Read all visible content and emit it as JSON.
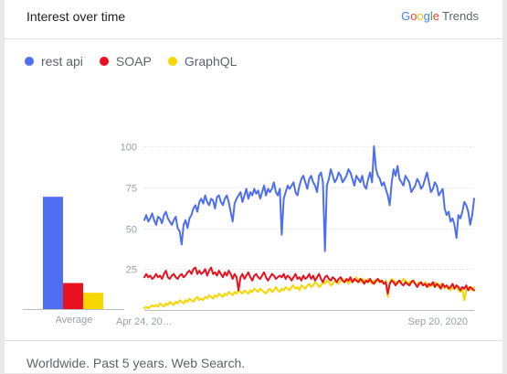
{
  "header": {
    "title": "Interest over time",
    "brand_letters": [
      "G",
      "o",
      "o",
      "g",
      "l",
      "e"
    ],
    "brand_suffix": "Trends"
  },
  "legend": [
    {
      "name": "rest api",
      "color": "#4e6ef2"
    },
    {
      "name": "SOAP",
      "color": "#e8111f"
    },
    {
      "name": "GraphQL",
      "color": "#f7d600"
    }
  ],
  "footer": {
    "text": "Worldwide. Past 5 years. Web Search."
  },
  "chart_data": [
    {
      "type": "bar",
      "categories": [
        "rest api",
        "SOAP",
        "GraphQL"
      ],
      "values": [
        69,
        16,
        10
      ],
      "colors": [
        "#4e6ef2",
        "#e8111f",
        "#f7d600"
      ],
      "xlabel": "Average",
      "ylim": [
        0,
        100
      ]
    },
    {
      "type": "line",
      "x_tick_labels": [
        "Apr 24, 20…",
        "Sep 20, 2020"
      ],
      "y_ticks": [
        25,
        50,
        75,
        100
      ],
      "ylim": [
        0,
        100
      ],
      "grid": true,
      "series": [
        {
          "name": "rest api",
          "color": "#4e6ef2",
          "values": [
            55,
            58,
            54,
            56,
            59,
            55,
            52,
            57,
            56,
            53,
            58,
            60,
            56,
            54,
            52,
            55,
            57,
            50,
            48,
            40,
            52,
            55,
            50,
            56,
            58,
            62,
            64,
            60,
            66,
            68,
            65,
            70,
            66,
            64,
            68,
            67,
            62,
            69,
            70,
            66,
            64,
            68,
            70,
            66,
            60,
            54,
            65,
            68,
            70,
            72,
            66,
            70,
            74,
            68,
            72,
            70,
            74,
            71,
            73,
            68,
            72,
            76,
            70,
            74,
            72,
            74,
            78,
            72,
            70,
            74,
            46,
            68,
            72,
            76,
            74,
            76,
            78,
            72,
            70,
            76,
            80,
            82,
            78,
            74,
            80,
            82,
            78,
            76,
            72,
            82,
            84,
            78,
            36,
            76,
            80,
            86,
            82,
            78,
            80,
            84,
            82,
            78,
            80,
            82,
            86,
            84,
            80,
            76,
            82,
            80,
            78,
            82,
            76,
            74,
            80,
            84,
            78,
            100,
            86,
            82,
            80,
            76,
            78,
            74,
            70,
            64,
            78,
            86,
            82,
            88,
            80,
            78,
            76,
            82,
            80,
            78,
            72,
            74,
            76,
            80,
            78,
            74,
            76,
            80,
            84,
            78,
            72,
            74,
            78,
            76,
            70,
            72,
            74,
            62,
            58,
            60,
            54,
            56,
            52,
            44,
            58,
            56,
            60,
            66,
            64,
            60,
            52,
            58,
            68
          ],
          "smooth": false
        },
        {
          "name": "SOAP",
          "color": "#e8111f",
          "values": [
            20,
            22,
            20,
            21,
            19,
            20,
            22,
            20,
            21,
            19,
            22,
            24,
            20,
            19,
            21,
            22,
            20,
            19,
            21,
            22,
            20,
            21,
            23,
            24,
            22,
            25,
            26,
            22,
            24,
            22,
            23,
            25,
            21,
            24,
            26,
            22,
            23,
            21,
            24,
            22,
            20,
            23,
            21,
            24,
            22,
            19,
            22,
            20,
            12,
            20,
            22,
            19,
            21,
            23,
            20,
            18,
            21,
            22,
            20,
            19,
            21,
            23,
            20,
            18,
            20,
            22,
            21,
            19,
            20,
            21,
            20,
            22,
            19,
            21,
            20,
            18,
            20,
            22,
            19,
            20,
            18,
            21,
            19,
            20,
            22,
            19,
            21,
            18,
            20,
            22,
            19,
            17,
            20,
            21,
            19,
            18,
            20,
            19,
            17,
            19,
            20,
            18,
            17,
            19,
            18,
            20,
            17,
            19,
            18,
            17,
            19,
            18,
            16,
            18,
            17,
            19,
            17,
            16,
            18,
            19,
            17,
            18,
            16,
            17,
            10,
            16,
            18,
            17,
            15,
            17,
            18,
            16,
            15,
            17,
            16,
            15,
            17,
            18,
            16,
            14,
            16,
            17,
            15,
            16,
            14,
            16,
            15,
            17,
            14,
            16,
            15,
            13,
            16,
            14,
            15,
            13,
            14,
            16,
            13,
            15,
            14,
            12,
            14,
            13,
            15,
            12,
            14,
            13,
            12
          ],
          "smooth": false
        },
        {
          "name": "GraphQL",
          "color": "#f7d600",
          "values": [
            1,
            2,
            1,
            2,
            3,
            2,
            3,
            2,
            4,
            3,
            2,
            4,
            3,
            5,
            4,
            3,
            5,
            4,
            6,
            5,
            4,
            6,
            5,
            7,
            6,
            5,
            7,
            8,
            6,
            7,
            6,
            8,
            7,
            9,
            8,
            7,
            9,
            8,
            10,
            9,
            8,
            10,
            9,
            11,
            10,
            9,
            11,
            10,
            12,
            11,
            10,
            12,
            11,
            10,
            12,
            11,
            13,
            12,
            11,
            13,
            12,
            11,
            10,
            12,
            13,
            11,
            12,
            14,
            12,
            11,
            13,
            12,
            14,
            13,
            12,
            14,
            15,
            13,
            14,
            12,
            15,
            14,
            13,
            15,
            16,
            14,
            15,
            17,
            16,
            14,
            15,
            17,
            16,
            18,
            17,
            15,
            16,
            18,
            17,
            16,
            18,
            19,
            17,
            18,
            16,
            19,
            17,
            18,
            20,
            18,
            17,
            19,
            18,
            17,
            19,
            18,
            16,
            18,
            17,
            19,
            18,
            17,
            16,
            18,
            8,
            17,
            19,
            18,
            17,
            16,
            18,
            17,
            19,
            18,
            17,
            16,
            18,
            17,
            16,
            15,
            17,
            16,
            15,
            17,
            16,
            14,
            16,
            15,
            17,
            15,
            14,
            16,
            15,
            13,
            15,
            14,
            12,
            14,
            13,
            15,
            12,
            11,
            13,
            6,
            12,
            14,
            13,
            12,
            14
          ],
          "smooth": false
        }
      ]
    }
  ]
}
